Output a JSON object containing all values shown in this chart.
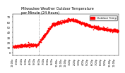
{
  "title": "Milwaukee Weather Outdoor Temperature per Minute (24 Hours)",
  "xlabel": "",
  "ylabel": "",
  "background_color": "#f0f0f0",
  "plot_background": "#ffffff",
  "dot_color": "#ff0000",
  "dot_size": 1.5,
  "vline_x": 0.375,
  "ylim": [
    -5,
    75
  ],
  "xlim": [
    0,
    1440
  ],
  "yticks": [
    0,
    10,
    20,
    30,
    40,
    50,
    60,
    70
  ],
  "xtick_labels": [
    "12:00a",
    "1:00a",
    "2:00a",
    "3:00a",
    "4:00a",
    "5:00a",
    "6:00a",
    "7:00a",
    "8:00a",
    "9:00a",
    "10:00a",
    "11:00a",
    "12:00p",
    "1:00p",
    "2:00p",
    "3:00p",
    "4:00p",
    "5:00p",
    "6:00p",
    "7:00p",
    "8:00p",
    "9:00p",
    "10:00p",
    "11:00p"
  ],
  "legend_label": "Outdoor Temp",
  "legend_color": "#ff0000"
}
